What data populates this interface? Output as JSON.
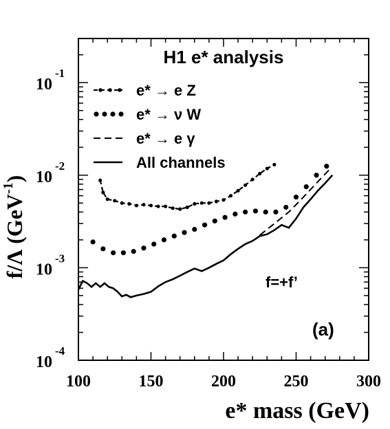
{
  "chart_data": {
    "type": "line",
    "title": "H1 e* analysis",
    "xlabel": "e* mass (GeV)",
    "ylabel": "f/Λ (GeV",
    "ylabel_sup": "-1",
    "ylabel_close": ")",
    "xlim": [
      100,
      300
    ],
    "ylim": [
      0.0001,
      0.3
    ],
    "yscale": "log",
    "x_ticks": [
      100,
      150,
      200,
      250,
      300
    ],
    "y_ticks": [
      {
        "value": 0.1,
        "base": "10",
        "exp": "-1"
      },
      {
        "value": 0.01,
        "base": "10",
        "exp": "-2"
      },
      {
        "value": 0.001,
        "base": "10",
        "exp": "-3"
      },
      {
        "value": 0.0001,
        "base": "10",
        "exp": "-4"
      }
    ],
    "grid": false,
    "legend_position": "top-left",
    "annotations": [
      {
        "text": "f=+f’"
      },
      {
        "text": "(a)"
      }
    ],
    "series": [
      {
        "name": "e* → e Z",
        "style": "dash-dot",
        "color": "#000000",
        "x": [
          115,
          117,
          120,
          125,
          130,
          135,
          140,
          145,
          150,
          155,
          160,
          165,
          170,
          175,
          180,
          185,
          190,
          195,
          200,
          205,
          210,
          215,
          220,
          225,
          230,
          235
        ],
        "y": [
          0.0088,
          0.0065,
          0.0055,
          0.0053,
          0.005,
          0.0049,
          0.0047,
          0.0048,
          0.0047,
          0.0046,
          0.0046,
          0.0044,
          0.0043,
          0.0045,
          0.0049,
          0.005,
          0.005,
          0.0052,
          0.0054,
          0.006,
          0.0068,
          0.0078,
          0.009,
          0.0104,
          0.0118,
          0.013
        ]
      },
      {
        "name": "e* → ν W",
        "style": "dotted",
        "color": "#000000",
        "x": [
          110,
          117,
          124,
          131,
          138,
          145,
          152,
          159,
          166,
          173,
          180,
          187,
          194,
          201,
          208,
          215,
          222,
          229,
          236,
          243,
          250,
          257,
          264,
          271
        ],
        "y": [
          0.0019,
          0.0016,
          0.00145,
          0.00145,
          0.0015,
          0.00163,
          0.0018,
          0.002,
          0.0022,
          0.0024,
          0.0026,
          0.0029,
          0.0032,
          0.0035,
          0.0038,
          0.004,
          0.0041,
          0.004,
          0.004,
          0.0045,
          0.0058,
          0.0075,
          0.01,
          0.0125
        ]
      },
      {
        "name": "e* → e γ",
        "style": "dashed",
        "color": "#000000",
        "x": [
          225,
          235,
          245,
          255,
          265,
          273
        ],
        "y": [
          0.00225,
          0.003,
          0.004,
          0.0058,
          0.0085,
          0.0115
        ]
      },
      {
        "name": "All channels",
        "style": "solid",
        "color": "#000000",
        "x": [
          100,
          103,
          106,
          109,
          112,
          115,
          118,
          121,
          124,
          127,
          130,
          133,
          136,
          140,
          145,
          150,
          155,
          160,
          165,
          170,
          175,
          180,
          185,
          190,
          195,
          200,
          205,
          210,
          215,
          220,
          225,
          230,
          235,
          240,
          245,
          250,
          255,
          260,
          265,
          270,
          275
        ],
        "y": [
          0.00058,
          0.00072,
          0.00068,
          0.00062,
          0.00068,
          0.00062,
          0.00068,
          0.00062,
          0.0006,
          0.00055,
          0.00049,
          0.00051,
          0.00048,
          0.0005,
          0.00052,
          0.00055,
          0.00063,
          0.0007,
          0.00075,
          0.00082,
          0.0009,
          0.00098,
          0.00092,
          0.001,
          0.0011,
          0.0012,
          0.0014,
          0.0016,
          0.0018,
          0.00195,
          0.0022,
          0.0023,
          0.00255,
          0.0029,
          0.0027,
          0.0034,
          0.0045,
          0.0055,
          0.0068,
          0.0082,
          0.01
        ]
      }
    ]
  }
}
